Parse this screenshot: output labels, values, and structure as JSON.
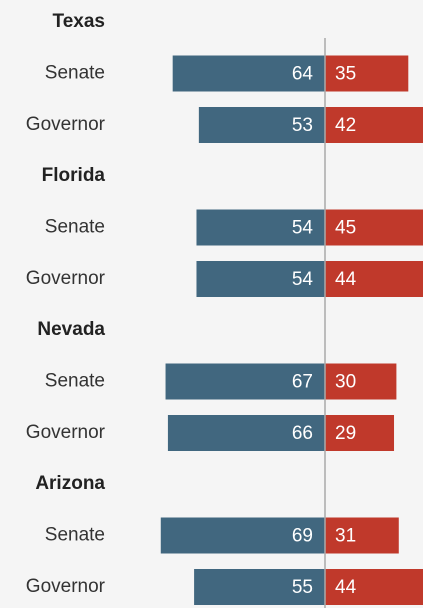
{
  "chart_data": {
    "type": "diverging_bar",
    "groups": [
      "Texas",
      "Florida",
      "Nevada",
      "Arizona"
    ],
    "categories": [
      "Senate",
      "Governor",
      "Senate",
      "Governor",
      "Senate",
      "Governor",
      "Senate",
      "Governor"
    ],
    "series": [
      {
        "color": "#41677f",
        "values": [
          64,
          53,
          54,
          54,
          67,
          66,
          69,
          55
        ]
      },
      {
        "color": "#c0392b",
        "values": [
          35,
          42,
          45,
          44,
          30,
          29,
          31,
          44
        ]
      }
    ]
  }
}
